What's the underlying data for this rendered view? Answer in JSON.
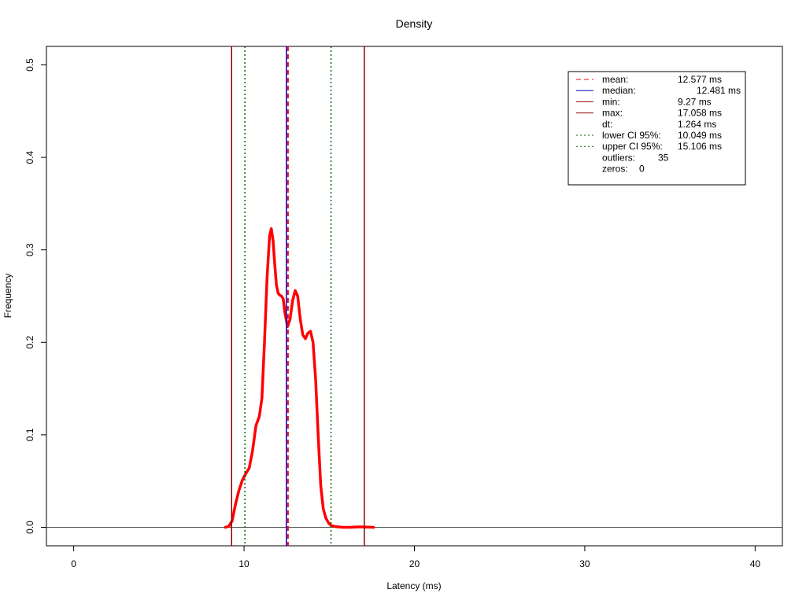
{
  "chart_data": {
    "type": "line",
    "title": "Density",
    "xlabel": "Latency (ms)",
    "ylabel": "Frequency",
    "xlim": [
      -1.6,
      41.6
    ],
    "ylim": [
      -0.02,
      0.52
    ],
    "x_ticks": [
      0,
      10,
      20,
      30,
      40
    ],
    "y_ticks": [
      0.0,
      0.1,
      0.2,
      0.3,
      0.4,
      0.5
    ],
    "x_tick_labels": [
      "0",
      "10",
      "20",
      "30",
      "40"
    ],
    "y_tick_labels": [
      "0.0",
      "0.1",
      "0.2",
      "0.3",
      "0.4",
      "0.5"
    ],
    "grid": false,
    "legend_position": "top-right",
    "baseline": 0,
    "series": [
      {
        "color": "#ff0000",
        "x": [
          8.9,
          9.1,
          9.3,
          9.5,
          9.7,
          9.9,
          10.1,
          10.3,
          10.5,
          10.7,
          10.9,
          11.05,
          11.2,
          11.35,
          11.5,
          11.6,
          11.7,
          11.8,
          11.9,
          12.0,
          12.1,
          12.2,
          12.3,
          12.4,
          12.55,
          12.7,
          12.85,
          13.0,
          13.15,
          13.3,
          13.45,
          13.6,
          13.75,
          13.9,
          14.05,
          14.2,
          14.35,
          14.5,
          14.65,
          14.8,
          14.95,
          15.1,
          15.3,
          15.5,
          15.8,
          16.2,
          16.8,
          17.3,
          17.6
        ],
        "y": [
          0.0,
          0.001,
          0.007,
          0.025,
          0.04,
          0.051,
          0.058,
          0.064,
          0.083,
          0.11,
          0.12,
          0.14,
          0.2,
          0.27,
          0.315,
          0.323,
          0.31,
          0.285,
          0.262,
          0.253,
          0.251,
          0.25,
          0.247,
          0.232,
          0.217,
          0.225,
          0.245,
          0.256,
          0.25,
          0.225,
          0.208,
          0.204,
          0.21,
          0.212,
          0.2,
          0.16,
          0.1,
          0.045,
          0.02,
          0.01,
          0.005,
          0.002,
          0.001,
          0.0005,
          0.0,
          0.0,
          0.0005,
          0.0002,
          0.0
        ]
      }
    ],
    "reference_lines": [
      {
        "label": "mean:",
        "value": 12.577,
        "text": "12.577 ms",
        "color": "#ff0000",
        "dash": "dashed"
      },
      {
        "label": "median:",
        "value": 12.481,
        "text": "12.481 ms",
        "color": "#0000cc",
        "dash": "solid"
      },
      {
        "label": "min:",
        "value": 9.27,
        "text": "9.27 ms",
        "color": "#8b0000",
        "dash": "solid"
      },
      {
        "label": "max:",
        "value": 17.058,
        "text": "17.058 ms",
        "color": "#8b0000",
        "dash": "solid"
      },
      {
        "label": "dt:",
        "value": null,
        "text": "1.264 ms",
        "color": null,
        "dash": null
      },
      {
        "label": "lower CI 95%:",
        "value": 10.049,
        "text": "10.049 ms",
        "color": "#006400",
        "dash": "dotted"
      },
      {
        "label": "upper CI 95%:",
        "value": 15.106,
        "text": "15.106 ms",
        "color": "#006400",
        "dash": "dotted"
      },
      {
        "label": "outliers:",
        "value": null,
        "text": "35",
        "color": null,
        "dash": null
      },
      {
        "label": "zeros:",
        "value": null,
        "text": "0",
        "color": null,
        "dash": null
      }
    ]
  }
}
